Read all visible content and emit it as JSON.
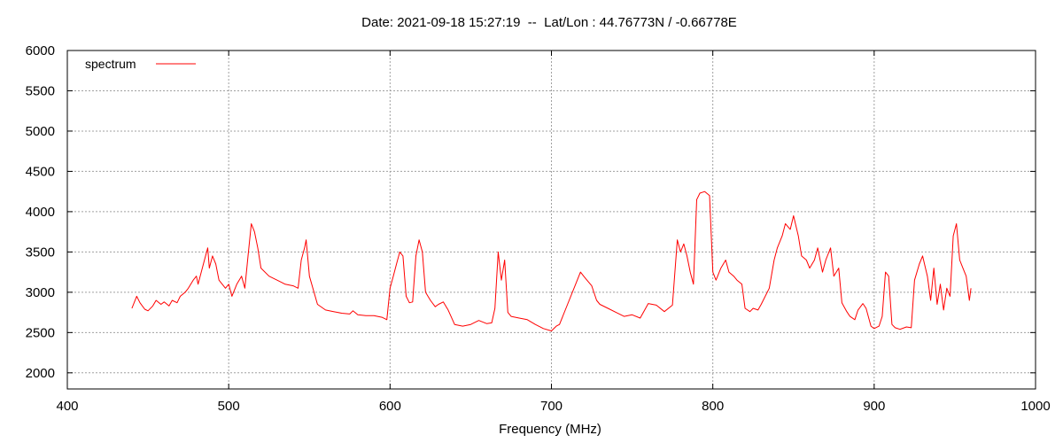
{
  "chart_data": {
    "type": "line",
    "title": "Date: 2021-09-18 15:27:19  --  Lat/Lon : 44.76773N / -0.66778E",
    "xlabel": "Frequency (MHz)",
    "ylabel": "",
    "xlim": [
      400,
      1000
    ],
    "ylim": [
      1800,
      6000
    ],
    "xticks": [
      400,
      500,
      600,
      700,
      800,
      900,
      1000
    ],
    "yticks": [
      2000,
      2500,
      3000,
      3500,
      4000,
      4500,
      5000,
      5500,
      6000
    ],
    "grid": true,
    "legend_position": "top-left",
    "series": [
      {
        "name": "spectrum",
        "color": "#ff0000",
        "x": [
          440,
          443,
          445,
          448,
          450,
          453,
          455,
          458,
          460,
          463,
          465,
          468,
          470,
          473,
          475,
          478,
          480,
          481,
          483,
          485,
          487,
          488,
          490,
          492,
          494,
          496,
          498,
          500,
          502,
          505,
          508,
          510,
          512,
          514,
          516,
          518,
          520,
          525,
          530,
          533,
          535,
          540,
          543,
          545,
          547,
          548,
          550,
          555,
          560,
          565,
          570,
          575,
          577,
          580,
          585,
          590,
          595,
          598,
          600,
          602,
          604,
          606,
          608,
          610,
          612,
          614,
          616,
          618,
          620,
          622,
          625,
          628,
          630,
          633,
          636,
          640,
          645,
          650,
          655,
          660,
          663,
          665,
          667,
          669,
          671,
          673,
          675,
          680,
          685,
          690,
          695,
          700,
          703,
          705,
          710,
          715,
          718,
          720,
          722,
          725,
          728,
          730,
          735,
          740,
          745,
          750,
          755,
          760,
          765,
          770,
          775,
          778,
          780,
          782,
          784,
          786,
          788,
          790,
          792,
          795,
          798,
          800,
          802,
          805,
          808,
          810,
          813,
          815,
          818,
          820,
          823,
          825,
          828,
          830,
          835,
          838,
          840,
          843,
          845,
          848,
          850,
          853,
          855,
          858,
          860,
          863,
          865,
          868,
          870,
          873,
          875,
          878,
          880,
          883,
          885,
          888,
          890,
          893,
          895,
          898,
          900,
          903,
          905,
          907,
          909,
          911,
          913,
          916,
          920,
          923,
          925,
          928,
          930,
          933,
          935,
          937,
          939,
          941,
          943,
          945,
          947,
          949,
          951,
          953,
          955,
          957,
          959,
          960
        ],
        "values": [
          2800,
          2950,
          2870,
          2790,
          2770,
          2830,
          2900,
          2850,
          2880,
          2830,
          2900,
          2870,
          2950,
          3000,
          3050,
          3150,
          3200,
          3100,
          3250,
          3400,
          3550,
          3300,
          3450,
          3350,
          3150,
          3100,
          3050,
          3100,
          2950,
          3100,
          3200,
          3050,
          3450,
          3850,
          3750,
          3550,
          3300,
          3200,
          3150,
          3120,
          3100,
          3080,
          3050,
          3400,
          3550,
          3650,
          3200,
          2850,
          2780,
          2760,
          2740,
          2730,
          2770,
          2720,
          2710,
          2710,
          2690,
          2660,
          3050,
          3200,
          3350,
          3500,
          3450,
          2950,
          2870,
          2880,
          3450,
          3650,
          3500,
          3000,
          2900,
          2820,
          2850,
          2880,
          2780,
          2600,
          2580,
          2600,
          2650,
          2610,
          2620,
          2800,
          3500,
          3150,
          3400,
          2750,
          2700,
          2680,
          2660,
          2600,
          2550,
          2520,
          2580,
          2600,
          2850,
          3100,
          3250,
          3200,
          3150,
          3080,
          2900,
          2850,
          2800,
          2750,
          2700,
          2720,
          2680,
          2860,
          2840,
          2760,
          2840,
          3650,
          3500,
          3600,
          3450,
          3250,
          3100,
          4150,
          4230,
          4250,
          4200,
          3250,
          3150,
          3300,
          3400,
          3250,
          3200,
          3150,
          3100,
          2800,
          2760,
          2800,
          2780,
          2850,
          3050,
          3400,
          3550,
          3700,
          3850,
          3780,
          3950,
          3700,
          3450,
          3400,
          3300,
          3400,
          3550,
          3250,
          3400,
          3550,
          3200,
          3300,
          2870,
          2760,
          2700,
          2660,
          2780,
          2860,
          2800,
          2580,
          2550,
          2580,
          2700,
          3250,
          3200,
          2600,
          2560,
          2540,
          2570,
          2560,
          3150,
          3350,
          3450,
          3200,
          2900,
          3300,
          2850,
          3100,
          2780,
          3050,
          2950,
          3700,
          3850,
          3400,
          3300,
          3200,
          2900,
          3050
        ]
      }
    ]
  }
}
